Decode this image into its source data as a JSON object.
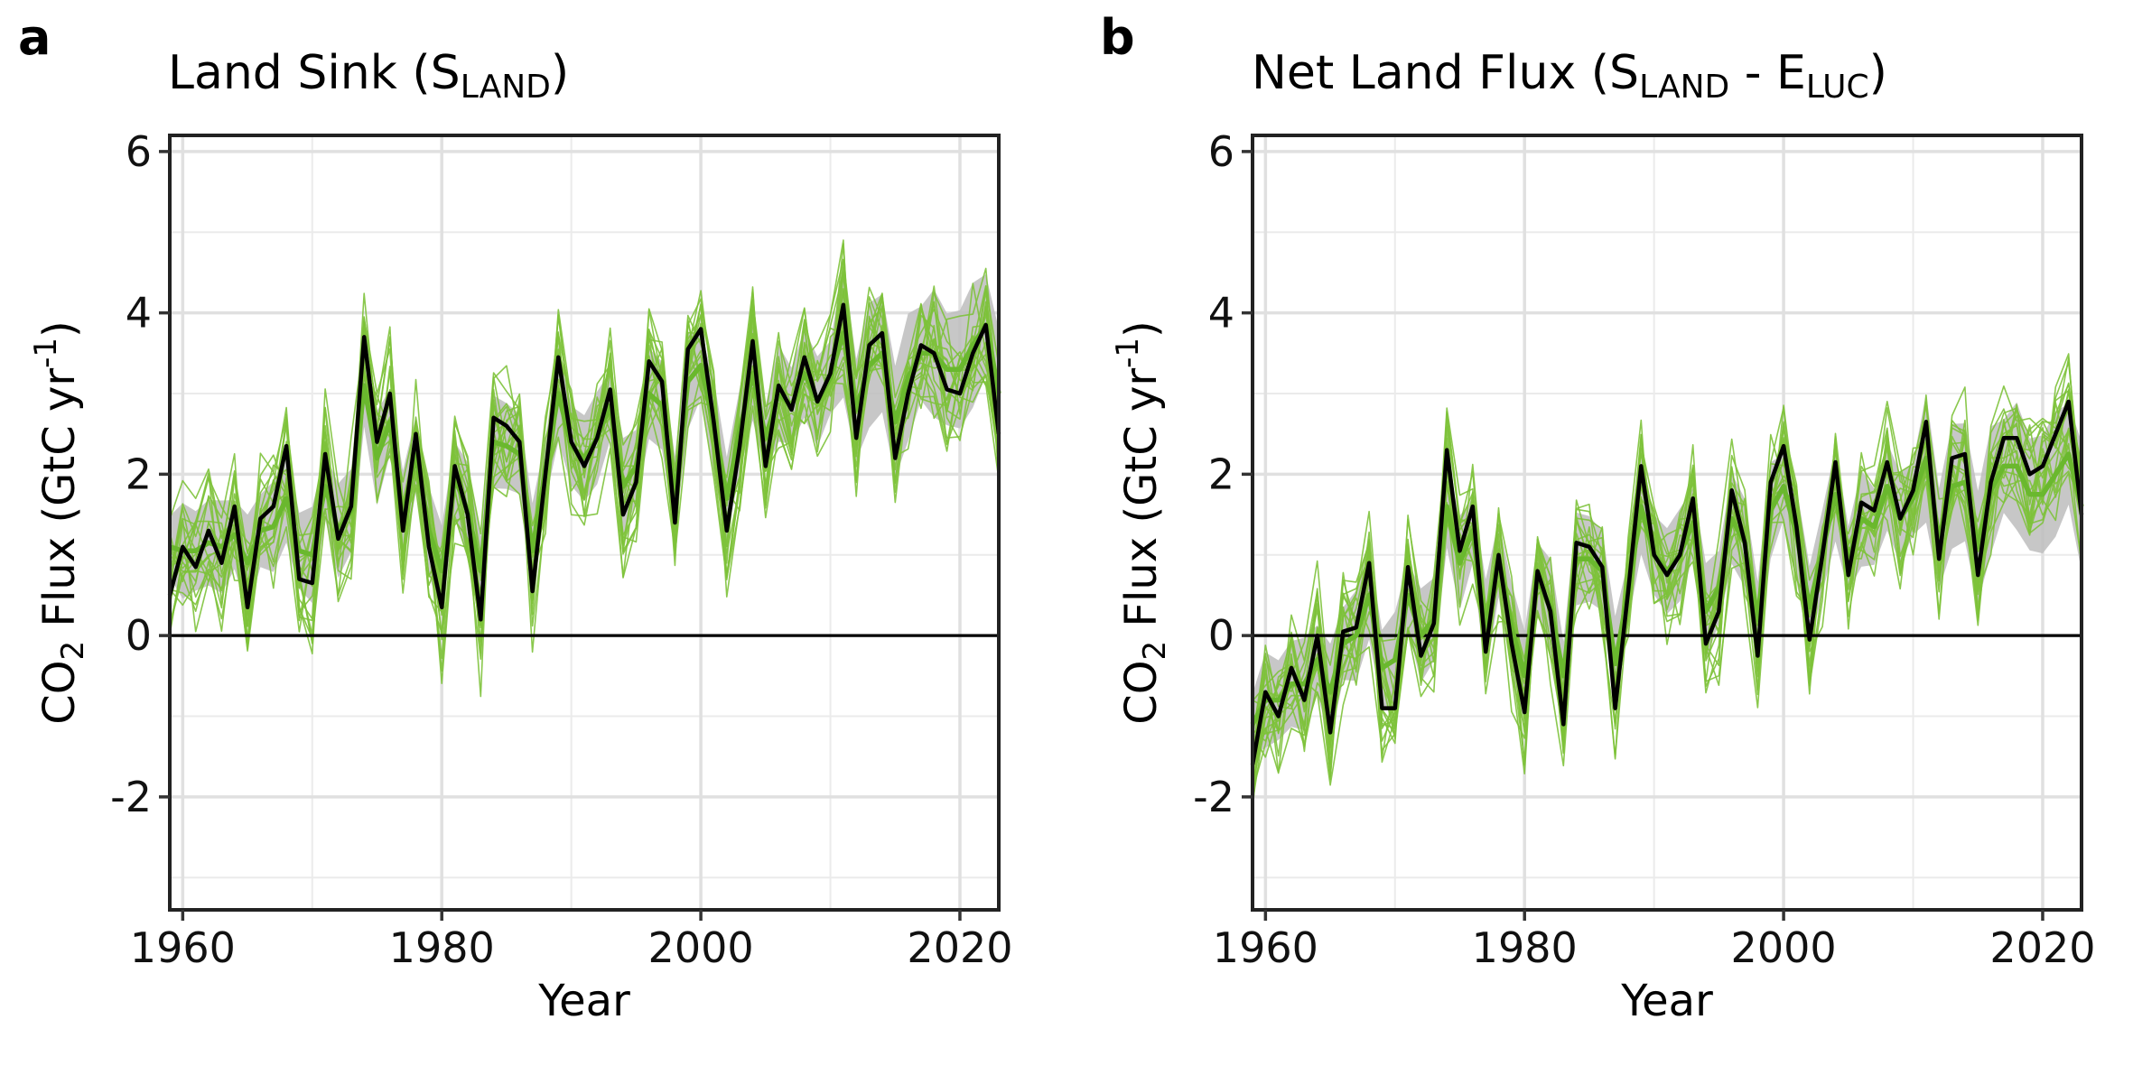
{
  "chart_data": [
    {
      "type": "line",
      "panel_letter": "a",
      "title_main": "Land Sink (S",
      "title_sub1": "LAND",
      "title_mid": ")",
      "title_sub2": "",
      "title_end": "",
      "xlabel": "Year",
      "ylabel_pre": "CO",
      "ylabel_sub": "2",
      "ylabel_mid": " Flux (GtC yr",
      "ylabel_sup": "-1",
      "ylabel_post": ")",
      "xlim": [
        1959,
        2023
      ],
      "ylim": [
        -3.4,
        6.2
      ],
      "x_ticks": [
        1960,
        1980,
        2000,
        2020
      ],
      "x_tick_labels": [
        "1960",
        "1980",
        "2000",
        "2020"
      ],
      "y_ticks": [
        -2,
        0,
        2,
        4,
        6
      ],
      "y_tick_labels": [
        "-2",
        "0",
        "2",
        "4",
        "6"
      ],
      "grid": true,
      "zero_line": true,
      "x": [
        1959,
        1960,
        1961,
        1962,
        1963,
        1964,
        1965,
        1966,
        1967,
        1968,
        1969,
        1970,
        1971,
        1972,
        1973,
        1974,
        1975,
        1976,
        1977,
        1978,
        1979,
        1980,
        1981,
        1982,
        1983,
        1984,
        1985,
        1986,
        1987,
        1988,
        1989,
        1990,
        1991,
        1992,
        1993,
        1994,
        1995,
        1996,
        1997,
        1998,
        1999,
        2000,
        2001,
        2002,
        2003,
        2004,
        2005,
        2006,
        2007,
        2008,
        2009,
        2010,
        2011,
        2012,
        2013,
        2014,
        2015,
        2016,
        2017,
        2018,
        2019,
        2020,
        2021,
        2022,
        2023
      ],
      "series": [
        {
          "name": "",
          "role": "estimate",
          "color": "#000000",
          "values": [
            0.5,
            1.1,
            0.85,
            1.3,
            0.9,
            1.6,
            0.35,
            1.45,
            1.6,
            2.35,
            0.7,
            0.65,
            2.25,
            1.2,
            1.6,
            3.7,
            2.4,
            3.0,
            1.3,
            2.5,
            1.1,
            0.35,
            2.1,
            1.5,
            0.2,
            2.7,
            2.6,
            2.4,
            0.55,
            2.0,
            3.45,
            2.4,
            2.1,
            2.45,
            3.05,
            1.5,
            1.9,
            3.4,
            3.15,
            1.4,
            3.55,
            3.8,
            2.65,
            1.3,
            2.35,
            3.65,
            2.1,
            3.1,
            2.8,
            3.45,
            2.9,
            3.25,
            4.1,
            2.45,
            3.6,
            3.75,
            2.2,
            3.0,
            3.6,
            3.5,
            3.05,
            3.0,
            3.5,
            3.85,
            2.5
          ]
        },
        {
          "name": "",
          "role": "model-mean",
          "color": "#6ab82e",
          "values": [
            1.1,
            1.05,
            1.05,
            1.15,
            1.1,
            1.25,
            0.9,
            1.3,
            1.35,
            1.7,
            1.05,
            1.0,
            1.85,
            1.3,
            1.55,
            3.1,
            2.2,
            2.65,
            1.45,
            2.25,
            1.3,
            0.8,
            1.95,
            1.55,
            0.8,
            2.4,
            2.35,
            2.25,
            1.05,
            2.05,
            3.0,
            2.35,
            2.2,
            2.45,
            2.85,
            1.85,
            2.1,
            3.0,
            2.85,
            1.75,
            3.15,
            3.35,
            2.6,
            1.7,
            2.55,
            3.25,
            2.45,
            3.0,
            2.85,
            3.25,
            2.9,
            3.2,
            3.75,
            2.8,
            3.35,
            3.5,
            2.65,
            3.2,
            3.5,
            3.5,
            3.3,
            3.3,
            3.6,
            3.85,
            3.0
          ]
        }
      ],
      "band": {
        "label": "model spread",
        "color": "#bdbdbd"
      },
      "ensemble": {
        "color": "#7dc23a",
        "members": 20
      }
    },
    {
      "type": "line",
      "panel_letter": "b",
      "title_main": "Net Land Flux (S",
      "title_sub1": "LAND",
      "title_mid": " - E",
      "title_sub2": "LUC",
      "title_end": ")",
      "xlabel": "Year",
      "ylabel_pre": "CO",
      "ylabel_sub": "2",
      "ylabel_mid": " Flux (GtC yr",
      "ylabel_sup": "-1",
      "ylabel_post": ")",
      "xlim": [
        1959,
        2023
      ],
      "ylim": [
        -3.4,
        6.2
      ],
      "x_ticks": [
        1960,
        1980,
        2000,
        2020
      ],
      "x_tick_labels": [
        "1960",
        "1980",
        "2000",
        "2020"
      ],
      "y_ticks": [
        -2,
        0,
        2,
        4,
        6
      ],
      "y_tick_labels": [
        "-2",
        "0",
        "2",
        "4",
        "6"
      ],
      "grid": true,
      "zero_line": true,
      "x": [
        1959,
        1960,
        1961,
        1962,
        1963,
        1964,
        1965,
        1966,
        1967,
        1968,
        1969,
        1970,
        1971,
        1972,
        1973,
        1974,
        1975,
        1976,
        1977,
        1978,
        1979,
        1980,
        1981,
        1982,
        1983,
        1984,
        1985,
        1986,
        1987,
        1988,
        1989,
        1990,
        1991,
        1992,
        1993,
        1994,
        1995,
        1996,
        1997,
        1998,
        1999,
        2000,
        2001,
        2002,
        2003,
        2004,
        2005,
        2006,
        2007,
        2008,
        2009,
        2010,
        2011,
        2012,
        2013,
        2014,
        2015,
        2016,
        2017,
        2018,
        2019,
        2020,
        2021,
        2022,
        2023
      ],
      "series": [
        {
          "name": "",
          "role": "estimate",
          "color": "#000000",
          "values": [
            -1.6,
            -0.7,
            -1.0,
            -0.4,
            -0.8,
            0.0,
            -1.2,
            0.05,
            0.1,
            0.9,
            -0.9,
            -0.9,
            0.85,
            -0.25,
            0.15,
            2.3,
            1.05,
            1.6,
            -0.2,
            1.0,
            -0.1,
            -0.95,
            0.8,
            0.3,
            -1.1,
            1.15,
            1.1,
            0.85,
            -0.9,
            0.55,
            2.1,
            1.0,
            0.75,
            1.0,
            1.7,
            -0.1,
            0.3,
            1.8,
            1.15,
            -0.25,
            1.9,
            2.35,
            1.35,
            -0.05,
            1.0,
            2.15,
            0.75,
            1.65,
            1.55,
            2.15,
            1.45,
            1.8,
            2.65,
            0.95,
            2.2,
            2.25,
            0.75,
            1.9,
            2.45,
            2.45,
            2.0,
            2.1,
            2.5,
            2.9,
            1.5
          ]
        },
        {
          "name": "",
          "role": "model-mean",
          "color": "#6ab82e",
          "values": [
            -1.1,
            -0.8,
            -0.8,
            -0.6,
            -0.6,
            -0.3,
            -0.7,
            -0.1,
            0.0,
            0.5,
            -0.4,
            -0.3,
            0.5,
            0.0,
            0.2,
            1.6,
            0.9,
            1.3,
            0.1,
            0.95,
            0.1,
            -0.5,
            0.7,
            0.35,
            -0.5,
            0.95,
            0.95,
            0.8,
            -0.35,
            0.55,
            1.6,
            1.0,
            0.8,
            1.0,
            1.4,
            0.3,
            0.6,
            1.45,
            1.15,
            0.2,
            1.55,
            1.85,
            1.25,
            0.35,
            1.05,
            1.75,
            0.95,
            1.45,
            1.35,
            1.85,
            1.45,
            1.7,
            2.2,
            1.2,
            1.85,
            1.9,
            1.1,
            1.8,
            2.1,
            2.1,
            1.75,
            1.75,
            2.0,
            2.25,
            1.6
          ]
        }
      ],
      "band": {
        "label": "model spread",
        "color": "#bdbdbd"
      },
      "ensemble": {
        "color": "#7dc23a",
        "members": 20
      }
    }
  ]
}
